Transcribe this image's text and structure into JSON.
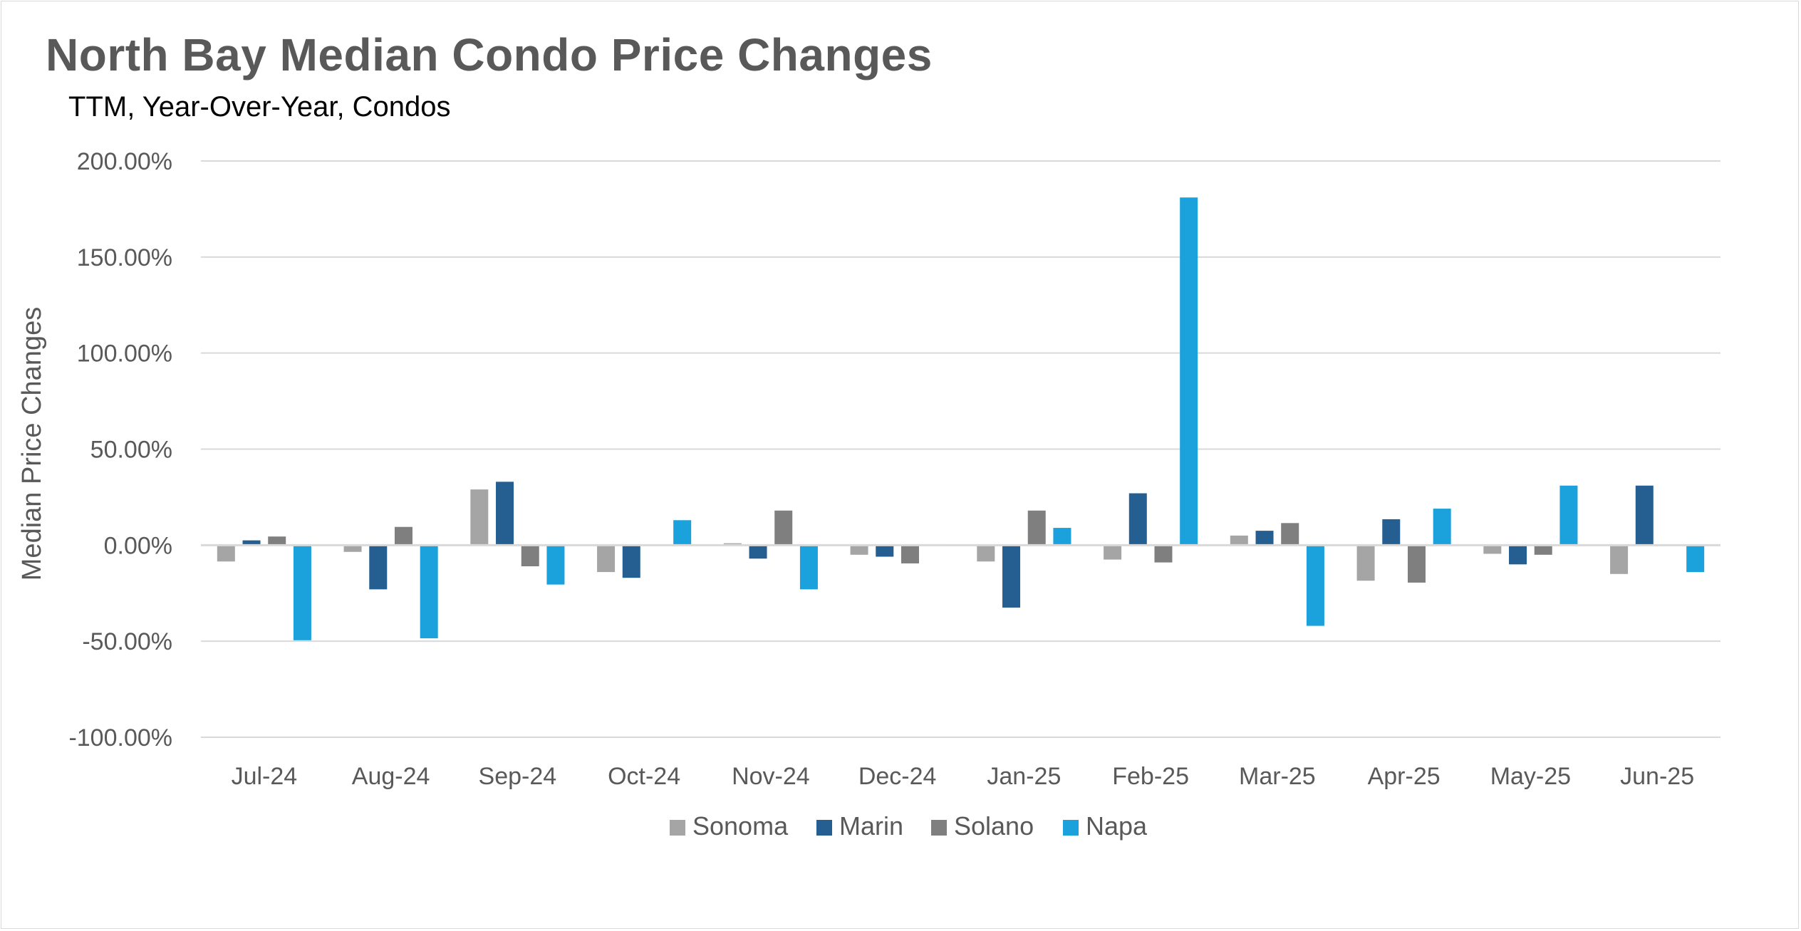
{
  "title": "North Bay Median Condo Price Changes",
  "subtitle": "TTM, Year-Over-Year, Condos",
  "chart_data": {
    "type": "bar",
    "title": "North Bay Median Condo Price Changes",
    "subtitle": "TTM, Year-Over-Year, Condos",
    "xlabel": "",
    "ylabel": "Median Price Changes",
    "ylim": [
      -100,
      200
    ],
    "yticks": [
      200,
      150,
      100,
      50,
      0,
      -50,
      -100
    ],
    "ytick_labels": [
      "200.00%",
      "150.00%",
      "100.00%",
      "50.00%",
      "0.00%",
      "-50.00%",
      "-100.00%"
    ],
    "grid": true,
    "legend_position": "bottom",
    "categories": [
      "Jul-24",
      "Aug-24",
      "Sep-24",
      "Oct-24",
      "Nov-24",
      "Dec-24",
      "Jan-25",
      "Feb-25",
      "Mar-25",
      "Apr-25",
      "May-25",
      "Jun-25"
    ],
    "series": [
      {
        "name": "Sonoma",
        "color": "#a5a5a5",
        "values": [
          -8.5,
          -3.5,
          29,
          -14,
          1,
          -5,
          -8.5,
          -7.5,
          5,
          -18.5,
          -4.5,
          -15
        ]
      },
      {
        "name": "Marin",
        "color": "#255e91",
        "values": [
          2.5,
          -23,
          33,
          -17,
          -7,
          -6,
          -32.5,
          27,
          7.5,
          13.5,
          -10,
          31
        ]
      },
      {
        "name": "Solano",
        "color": "#7f7f7f",
        "values": [
          4.5,
          9.5,
          -11,
          0,
          18,
          -9.5,
          18,
          -9,
          11.5,
          -19.5,
          -5,
          0
        ]
      },
      {
        "name": "Napa",
        "color": "#1ba1dc",
        "values": [
          -49.5,
          -48.5,
          -20.5,
          13,
          -23,
          0.5,
          9,
          181,
          -42,
          19,
          31,
          -14
        ]
      }
    ]
  }
}
